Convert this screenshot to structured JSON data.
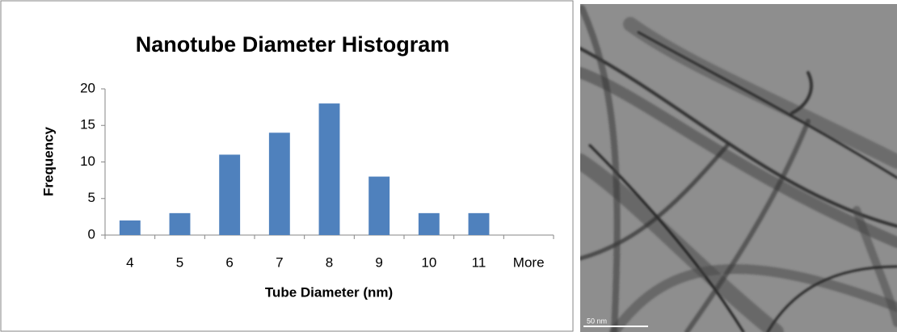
{
  "chart_data": {
    "type": "bar",
    "title": "Nanotube Diameter Histogram",
    "x_label": "Tube Diameter (nm)",
    "y_label": "Frequency",
    "categories": [
      "4",
      "5",
      "6",
      "7",
      "8",
      "9",
      "10",
      "11",
      "More"
    ],
    "values": [
      2,
      3,
      11,
      14,
      18,
      8,
      3,
      3,
      0
    ],
    "color": "#4f81bd",
    "ylim": [
      0,
      20
    ],
    "yticks": [
      0,
      5,
      10,
      15,
      20
    ],
    "grid": false
  },
  "image": {
    "scale_bar": "50 nm"
  }
}
